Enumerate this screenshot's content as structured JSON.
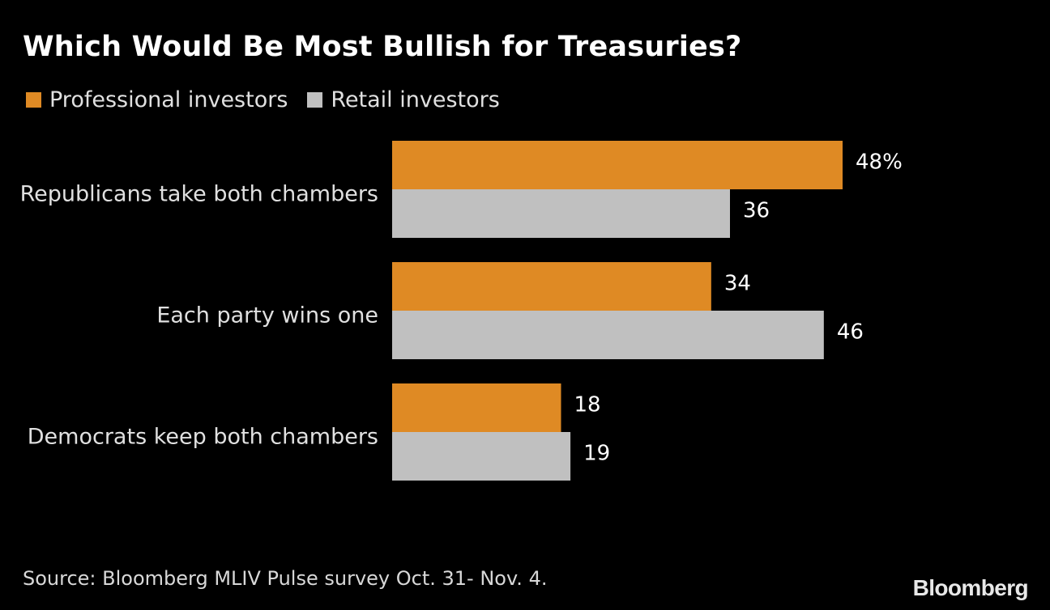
{
  "title": "Which Would Be Most Bullish for Treasuries?",
  "legend": [
    {
      "label": "Professional investors",
      "color": "#df8a24"
    },
    {
      "label": "Retail investors",
      "color": "#c0c0c0"
    }
  ],
  "chart_data": {
    "type": "bar",
    "orientation": "horizontal",
    "title": "Which Would Be Most Bullish for Treasuries?",
    "categories": [
      "Republicans take both chambers",
      "Each party wins one",
      "Democrats keep both chambers"
    ],
    "series": [
      {
        "name": "Professional investors",
        "color": "#df8a24",
        "values": [
          48,
          34,
          18
        ],
        "labels": [
          "48%",
          "34",
          "18"
        ]
      },
      {
        "name": "Retail investors",
        "color": "#c0c0c0",
        "values": [
          36,
          46,
          19
        ],
        "labels": [
          "36",
          "46",
          "19"
        ]
      }
    ],
    "xlim": [
      0,
      48
    ],
    "grid": false,
    "legend_position": "top-left"
  },
  "source": "Source: Bloomberg MLIV Pulse survey Oct. 31- Nov. 4.",
  "logo": "Bloomberg"
}
